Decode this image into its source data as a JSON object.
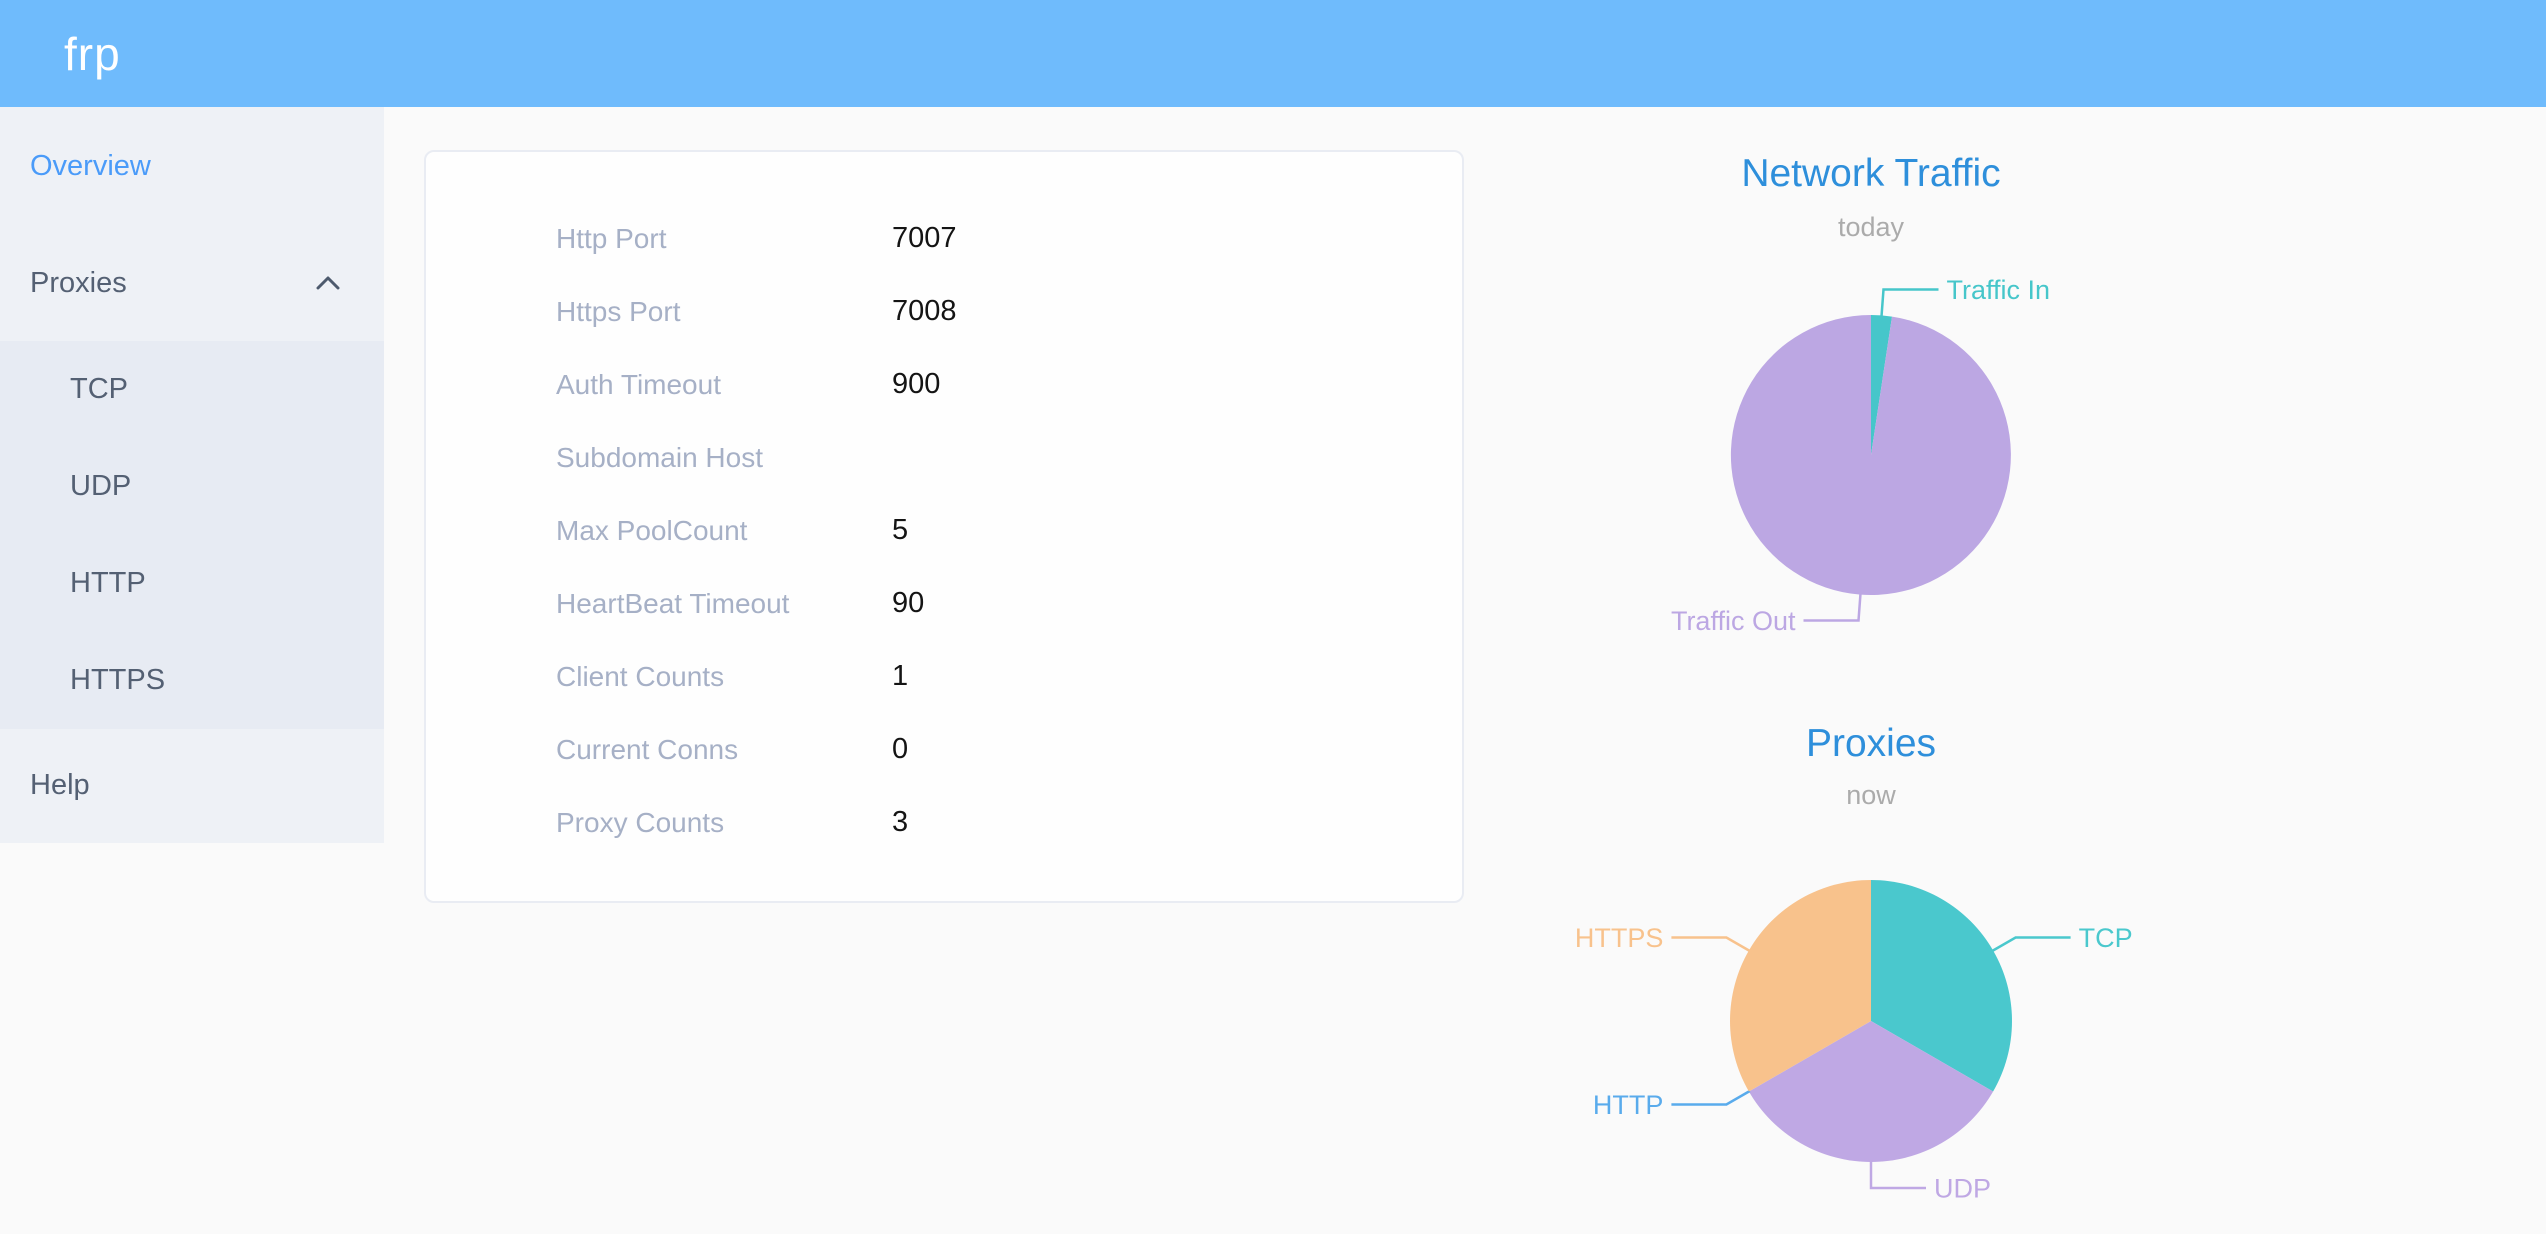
{
  "header": {
    "logo": "frp"
  },
  "sidebar": {
    "items": [
      {
        "label": "Overview",
        "active": true
      },
      {
        "label": "Proxies",
        "expanded": true,
        "children": [
          "TCP",
          "UDP",
          "HTTP",
          "HTTPS"
        ]
      },
      {
        "label": "Help",
        "active": false
      }
    ]
  },
  "overview_card": {
    "rows": [
      {
        "label": "Http Port",
        "value": "7007"
      },
      {
        "label": "Https Port",
        "value": "7008"
      },
      {
        "label": "Auth Timeout",
        "value": "900"
      },
      {
        "label": "Subdomain Host",
        "value": ""
      },
      {
        "label": "Max PoolCount",
        "value": "5"
      },
      {
        "label": "HeartBeat Timeout",
        "value": "90"
      },
      {
        "label": "Client Counts",
        "value": "1"
      },
      {
        "label": "Current Conns",
        "value": "0"
      },
      {
        "label": "Proxy Counts",
        "value": "3"
      }
    ]
  },
  "chart_data": [
    {
      "type": "pie",
      "title": "Network Traffic",
      "subtitle": "today",
      "unit": "percent (estimated from slice angles, no numeric labels shown)",
      "legend_position": "none",
      "labels_outside_with_leader_lines": true,
      "series": [
        {
          "name": "Traffic In",
          "value": 2.4,
          "color": "#46c6ca"
        },
        {
          "name": "Traffic Out",
          "value": 97.6,
          "color": "#bca7e3"
        }
      ]
    },
    {
      "type": "pie",
      "title": "Proxies",
      "subtitle": "now",
      "unit": "proxy count per type",
      "legend_position": "none",
      "labels_outside_with_leader_lines": true,
      "series": [
        {
          "name": "TCP",
          "value": 1,
          "color": "#4ac8cd"
        },
        {
          "name": "UDP",
          "value": 1,
          "color": "#bfa8e4"
        },
        {
          "name": "HTTP",
          "value": 0,
          "color": "#59abec"
        },
        {
          "name": "HTTPS",
          "value": 1,
          "color": "#f8c28c"
        }
      ]
    }
  ],
  "colors": {
    "header_bg": "#6fbbfc",
    "page_bg": "#fafafa",
    "sidebar_bg": "#eef1f6",
    "submenu_bg": "#e7ebf3",
    "active_menu": "#4a9bf9",
    "menu_text": "#546073",
    "card_label": "#a6b0c6",
    "chart_title_blue": "#2e8fdb",
    "subtitle_gray": "#ababab"
  }
}
